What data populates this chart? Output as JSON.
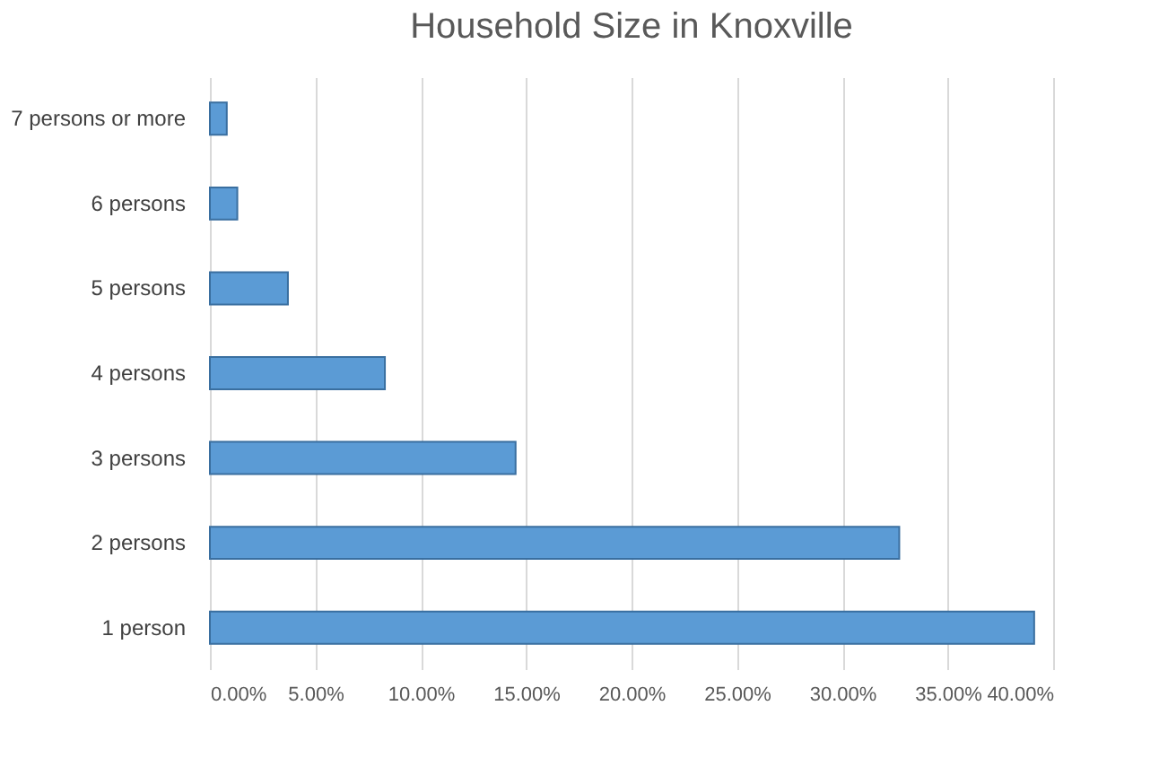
{
  "chart_data": {
    "type": "bar",
    "orientation": "horizontal",
    "title": "Household Size in Knoxville",
    "categories": [
      "7 persons or more",
      "6 persons",
      "5 persons",
      "4 persons",
      "3 persons",
      "2 persons",
      "1 person"
    ],
    "values": [
      0.8,
      1.3,
      3.7,
      8.3,
      14.5,
      32.7,
      39.1
    ],
    "color": "#5b9bd5",
    "xlim": [
      0,
      40
    ],
    "xticks": [
      {
        "value": 0,
        "label": "0.00%"
      },
      {
        "value": 5,
        "label": "5.00%"
      },
      {
        "value": 10,
        "label": "10.00%"
      },
      {
        "value": 15,
        "label": "15.00%"
      },
      {
        "value": 20,
        "label": "20.00%"
      },
      {
        "value": 25,
        "label": "25.00%"
      },
      {
        "value": 30,
        "label": "30.00%"
      },
      {
        "value": 35,
        "label": "35.00%"
      },
      {
        "value": 40,
        "label": "40.00%"
      }
    ],
    "grid": "x"
  }
}
